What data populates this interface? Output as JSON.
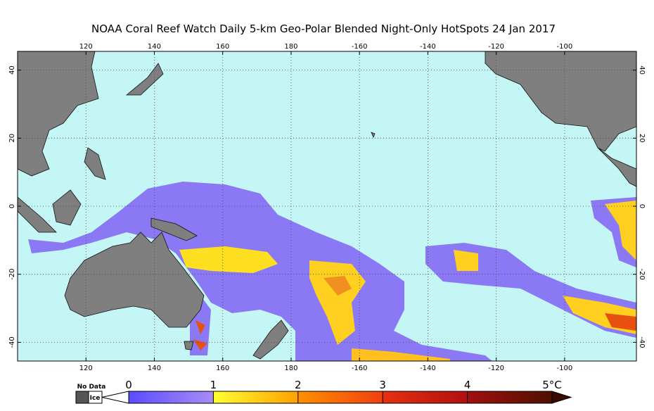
{
  "title": "NOAA Coral Reef Watch Daily 5-km Geo-Polar Blended Night-Only HotSpots   24 Jan 2017",
  "map": {
    "lonlim": [
      100,
      -79
    ],
    "latlim": [
      45.5,
      -45.5
    ],
    "lon_ticks": [
      120,
      140,
      160,
      180,
      -160,
      -140,
      -120,
      -100
    ],
    "lat_ticks": [
      40,
      20,
      0,
      -20,
      -40
    ]
  },
  "colorbar": {
    "no_data_label": "No Data",
    "ice_label": "Ice",
    "range": [
      0,
      5
    ],
    "ticks": [
      0,
      1,
      2,
      3,
      4,
      {
        "value": 5,
        "label": "5°C"
      }
    ]
  }
}
